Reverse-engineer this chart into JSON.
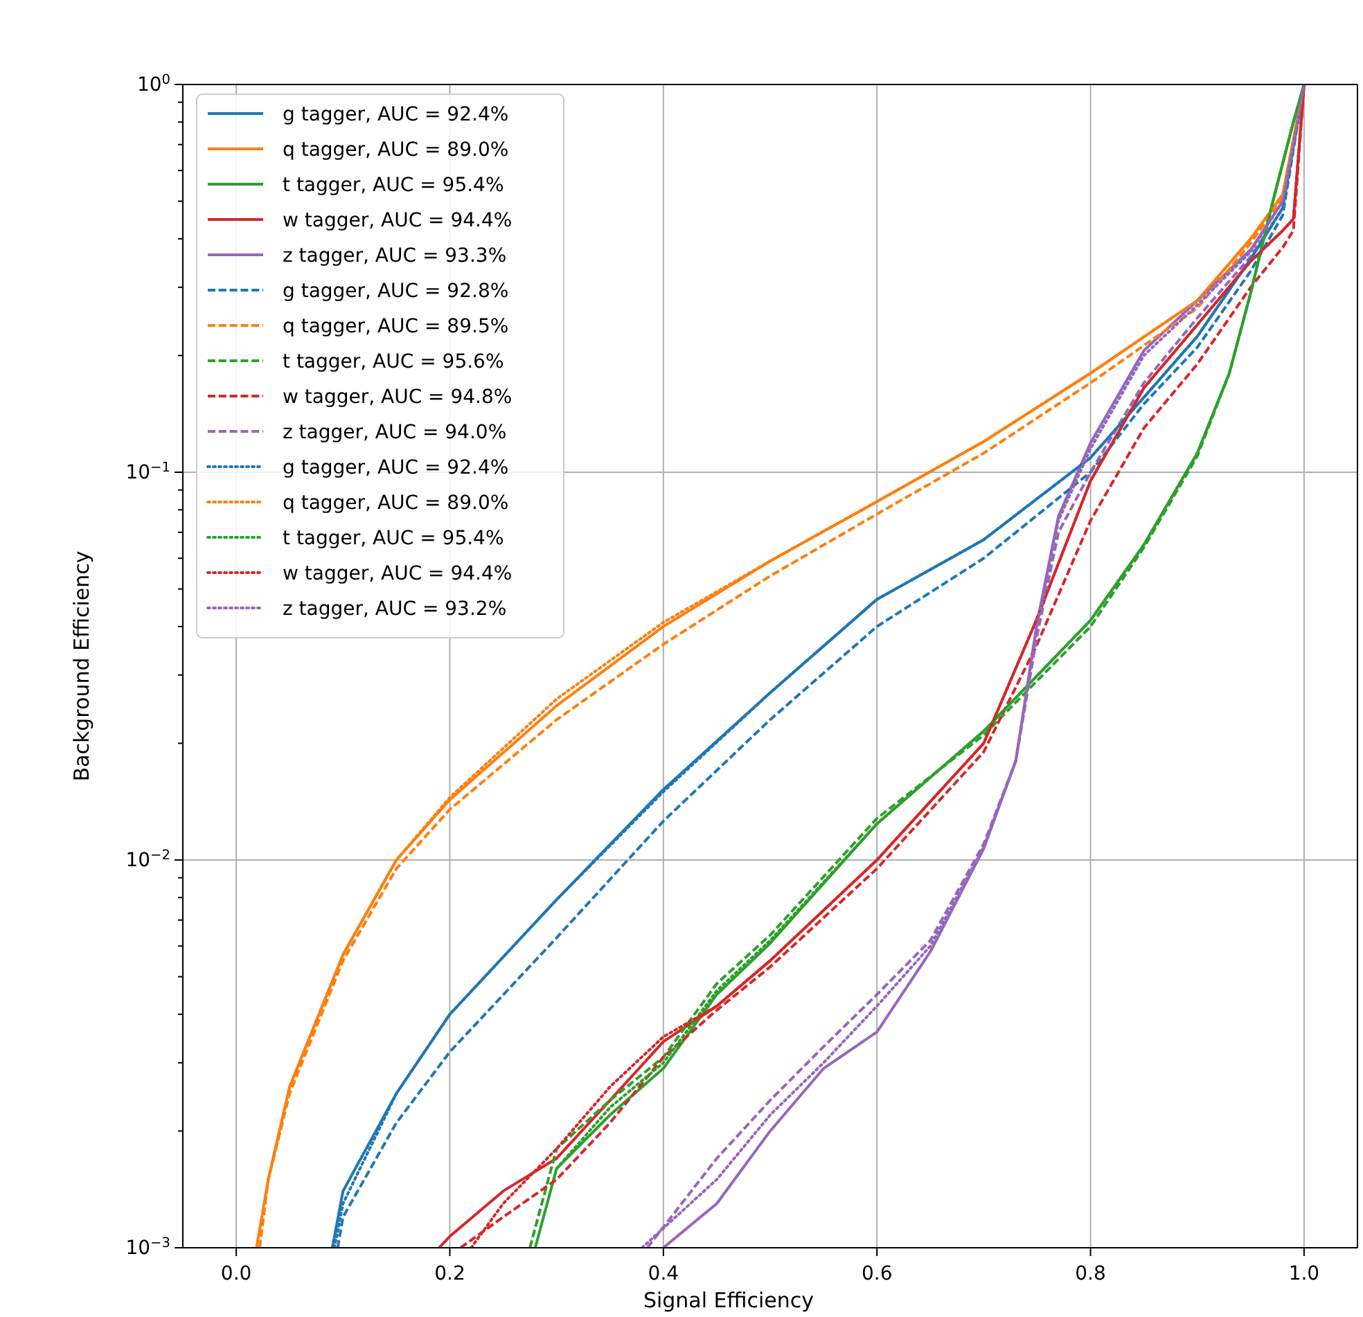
{
  "chart_data": {
    "type": "line",
    "xlabel": "Signal Efficiency",
    "ylabel": "Background Efficiency",
    "log": "y",
    "grid": true,
    "legend": "top left",
    "xlim": [
      -0.05,
      1.05
    ],
    "xticks": [
      {
        "value": 0,
        "label": "0.0"
      },
      {
        "value": 0.2,
        "label": "0.2"
      },
      {
        "value": 0.4,
        "label": "0.4"
      },
      {
        "value": 0.6,
        "label": "0.6"
      },
      {
        "value": 0.8,
        "label": "0.8"
      },
      {
        "value": 1,
        "label": "1.0"
      }
    ],
    "ylim": [
      0.001,
      1
    ],
    "yticks": [
      {
        "value": 0.001,
        "label": "10$^{−3}$"
      },
      {
        "value": 0.002,
        "label": null
      },
      {
        "value": 0.003,
        "label": null
      },
      {
        "value": 0.004,
        "label": null
      },
      {
        "value": 0.005,
        "label": null
      },
      {
        "value": 0.006,
        "label": null
      },
      {
        "value": 0.007,
        "label": null
      },
      {
        "value": 0.008,
        "label": null
      },
      {
        "value": 0.009,
        "label": null
      },
      {
        "value": 0.01,
        "label": "10$^{−2}$"
      },
      {
        "value": 0.02,
        "label": null
      },
      {
        "value": 0.03,
        "label": null
      },
      {
        "value": 0.04,
        "label": null
      },
      {
        "value": 0.05,
        "label": null
      },
      {
        "value": 0.06,
        "label": null
      },
      {
        "value": 0.07,
        "label": null
      },
      {
        "value": 0.08,
        "label": null
      },
      {
        "value": 0.09,
        "label": null
      },
      {
        "value": 0.1,
        "label": "10$^{−1}$"
      },
      {
        "value": 0.2,
        "label": null
      },
      {
        "value": 0.3,
        "label": null
      },
      {
        "value": 0.4,
        "label": null
      },
      {
        "value": 0.5,
        "label": null
      },
      {
        "value": 0.6,
        "label": null
      },
      {
        "value": 0.7,
        "label": null
      },
      {
        "value": 0.8,
        "label": null
      },
      {
        "value": 0.9,
        "label": null
      },
      {
        "value": 1,
        "label": "10$^{0}$"
      }
    ],
    "series": [
      {
        "name": "g tagger, AUC = 92.4%",
        "color": "#1f77b4",
        "line_style": "solid",
        "x": [
          0.09,
          0.1,
          0.15,
          0.2,
          0.3,
          0.4,
          0.5,
          0.6,
          0.7,
          0.8,
          0.85,
          0.9,
          0.95,
          0.98,
          1.0
        ],
        "values": [
          0.001,
          0.0014,
          0.0025,
          0.004,
          0.0079,
          0.0152,
          0.027,
          0.047,
          0.067,
          0.109,
          0.156,
          0.224,
          0.355,
          0.48,
          1
        ]
      },
      {
        "name": "q tagger, AUC = 89.0%",
        "color": "#ff7f0e",
        "line_style": "solid",
        "x": [
          0.019,
          0.03,
          0.05,
          0.1,
          0.15,
          0.2,
          0.3,
          0.4,
          0.5,
          0.6,
          0.7,
          0.8,
          0.9,
          0.95,
          0.98,
          1.0
        ],
        "values": [
          0.001,
          0.0015,
          0.0026,
          0.0057,
          0.01,
          0.0143,
          0.025,
          0.04,
          0.059,
          0.084,
          0.12,
          0.18,
          0.277,
          0.4,
          0.52,
          1
        ]
      },
      {
        "name": "t tagger, AUC = 95.4%",
        "color": "#2ca02c",
        "line_style": "solid",
        "x": [
          0.28,
          0.3,
          0.35,
          0.4,
          0.45,
          0.5,
          0.6,
          0.7,
          0.8,
          0.85,
          0.9,
          0.93,
          0.95,
          0.97,
          0.99,
          1.0
        ],
        "values": [
          0.001,
          0.0016,
          0.0022,
          0.0029,
          0.0045,
          0.0061,
          0.0124,
          0.0215,
          0.0415,
          0.065,
          0.112,
          0.18,
          0.29,
          0.49,
          0.8,
          1
        ]
      },
      {
        "name": "w tagger, AUC = 94.4%",
        "color": "#d62728",
        "line_style": "solid",
        "x": [
          0.19,
          0.2,
          0.25,
          0.3,
          0.35,
          0.4,
          0.45,
          0.5,
          0.6,
          0.7,
          0.75,
          0.8,
          0.85,
          0.9,
          0.95,
          0.98,
          0.99,
          1.0
        ],
        "values": [
          0.001,
          0.00107,
          0.0014,
          0.0017,
          0.0024,
          0.0034,
          0.0042,
          0.0055,
          0.01,
          0.02,
          0.042,
          0.095,
          0.165,
          0.24,
          0.35,
          0.42,
          0.45,
          1
        ]
      },
      {
        "name": "z tagger, AUC = 93.3%",
        "color": "#9467bd",
        "line_style": "solid",
        "x": [
          0.4,
          0.45,
          0.5,
          0.55,
          0.6,
          0.65,
          0.7,
          0.73,
          0.75,
          0.77,
          0.8,
          0.85,
          0.9,
          0.95,
          0.98,
          1.0
        ],
        "values": [
          0.001,
          0.0013,
          0.002,
          0.0029,
          0.0036,
          0.0058,
          0.0107,
          0.018,
          0.041,
          0.077,
          0.119,
          0.206,
          0.277,
          0.375,
          0.5,
          1
        ]
      },
      {
        "name": "g tagger, AUC = 92.8%",
        "color": "#1f77b4",
        "line_style": "dashed",
        "x": [
          0.095,
          0.1,
          0.15,
          0.2,
          0.3,
          0.4,
          0.5,
          0.6,
          0.7,
          0.8,
          0.85,
          0.9,
          0.95,
          0.98,
          1.0
        ],
        "values": [
          0.001,
          0.0012,
          0.0021,
          0.0032,
          0.0063,
          0.0126,
          0.023,
          0.04,
          0.06,
          0.1,
          0.15,
          0.21,
          0.33,
          0.46,
          1
        ]
      },
      {
        "name": "q tagger, AUC = 89.5%",
        "color": "#ff7f0e",
        "line_style": "dashed",
        "x": [
          0.022,
          0.03,
          0.05,
          0.1,
          0.15,
          0.2,
          0.3,
          0.4,
          0.5,
          0.6,
          0.7,
          0.8,
          0.9,
          0.95,
          0.98,
          1.0
        ],
        "values": [
          0.001,
          0.0015,
          0.0025,
          0.0055,
          0.0095,
          0.0135,
          0.023,
          0.036,
          0.054,
          0.078,
          0.112,
          0.17,
          0.265,
          0.39,
          0.51,
          1
        ]
      },
      {
        "name": "t tagger, AUC = 95.6%",
        "color": "#2ca02c",
        "line_style": "dashed",
        "x": [
          0.275,
          0.3,
          0.35,
          0.4,
          0.45,
          0.5,
          0.6,
          0.7,
          0.8,
          0.85,
          0.9,
          0.93,
          0.95,
          0.97,
          0.99,
          1.0
        ],
        "values": [
          0.001,
          0.0018,
          0.0024,
          0.0031,
          0.0048,
          0.0064,
          0.0128,
          0.021,
          0.04,
          0.064,
          0.11,
          0.18,
          0.29,
          0.49,
          0.8,
          1
        ]
      },
      {
        "name": "w tagger, AUC = 94.8%",
        "color": "#d62728",
        "line_style": "dashed",
        "x": [
          0.21,
          0.25,
          0.3,
          0.35,
          0.4,
          0.45,
          0.5,
          0.6,
          0.7,
          0.75,
          0.8,
          0.85,
          0.9,
          0.95,
          0.98,
          0.99,
          1.0
        ],
        "values": [
          0.001,
          0.0012,
          0.0015,
          0.0021,
          0.0031,
          0.0041,
          0.0053,
          0.0095,
          0.019,
          0.036,
          0.075,
          0.13,
          0.19,
          0.3,
          0.38,
          0.42,
          1
        ]
      },
      {
        "name": "z tagger, AUC = 94.0%",
        "color": "#9467bd",
        "line_style": "dashed",
        "x": [
          0.385,
          0.45,
          0.5,
          0.55,
          0.6,
          0.65,
          0.7,
          0.73,
          0.75,
          0.77,
          0.8,
          0.85,
          0.9,
          0.95,
          0.98,
          1.0
        ],
        "values": [
          0.001,
          0.0017,
          0.0024,
          0.0033,
          0.0045,
          0.0062,
          0.011,
          0.018,
          0.038,
          0.07,
          0.1,
          0.17,
          0.25,
          0.36,
          0.48,
          1
        ]
      },
      {
        "name": "g tagger, AUC = 92.4%",
        "color": "#1f77b4",
        "line_style": "dotted",
        "x": [
          0.092,
          0.1,
          0.15,
          0.2,
          0.3,
          0.4,
          0.5,
          0.6,
          0.7,
          0.8,
          0.85,
          0.9,
          0.95,
          0.98,
          1.0
        ],
        "values": [
          0.001,
          0.0013,
          0.0025,
          0.004,
          0.0079,
          0.015,
          0.027,
          0.047,
          0.067,
          0.109,
          0.156,
          0.224,
          0.355,
          0.48,
          1
        ]
      },
      {
        "name": "q tagger, AUC = 89.0%",
        "color": "#ff7f0e",
        "line_style": "dotted",
        "x": [
          0.03,
          0.05,
          0.1,
          0.15,
          0.2,
          0.3,
          0.4,
          0.5,
          0.6,
          0.7,
          0.8,
          0.9,
          0.95,
          0.98,
          1.0
        ],
        "values": [
          0.0015,
          0.0026,
          0.0057,
          0.01,
          0.0145,
          0.026,
          0.041,
          0.059,
          0.084,
          0.12,
          0.18,
          0.277,
          0.4,
          0.52,
          1
        ]
      },
      {
        "name": "t tagger, AUC = 95.4%",
        "color": "#2ca02c",
        "line_style": "dotted",
        "x": [
          0.3,
          0.35,
          0.4,
          0.45,
          0.5,
          0.6,
          0.7,
          0.8,
          0.85,
          0.9,
          0.93,
          0.95,
          0.97,
          0.99,
          1.0
        ],
        "values": [
          0.0016,
          0.0023,
          0.003,
          0.0046,
          0.0062,
          0.0124,
          0.0215,
          0.0415,
          0.065,
          0.112,
          0.18,
          0.29,
          0.49,
          0.8,
          1
        ]
      },
      {
        "name": "w tagger, AUC = 94.4%",
        "color": "#d62728",
        "line_style": "dotted",
        "x": [
          0.22,
          0.25,
          0.3,
          0.35,
          0.4,
          0.45,
          0.5,
          0.6,
          0.7,
          0.75,
          0.8,
          0.85,
          0.9,
          0.95,
          0.98,
          0.99,
          1.0
        ],
        "values": [
          0.001,
          0.0013,
          0.0018,
          0.0026,
          0.0035,
          0.0042,
          0.0055,
          0.01,
          0.02,
          0.042,
          0.095,
          0.165,
          0.24,
          0.35,
          0.42,
          0.45,
          1
        ]
      },
      {
        "name": "z tagger, AUC = 93.2%",
        "color": "#9467bd",
        "line_style": "dotted",
        "x": [
          0.38,
          0.45,
          0.5,
          0.55,
          0.6,
          0.65,
          0.7,
          0.73,
          0.75,
          0.77,
          0.8,
          0.85,
          0.9,
          0.95,
          0.98,
          1.0
        ],
        "values": [
          0.001,
          0.0015,
          0.0022,
          0.003,
          0.0042,
          0.006,
          0.0108,
          0.018,
          0.04,
          0.075,
          0.115,
          0.2,
          0.27,
          0.37,
          0.5,
          1
        ]
      }
    ]
  }
}
